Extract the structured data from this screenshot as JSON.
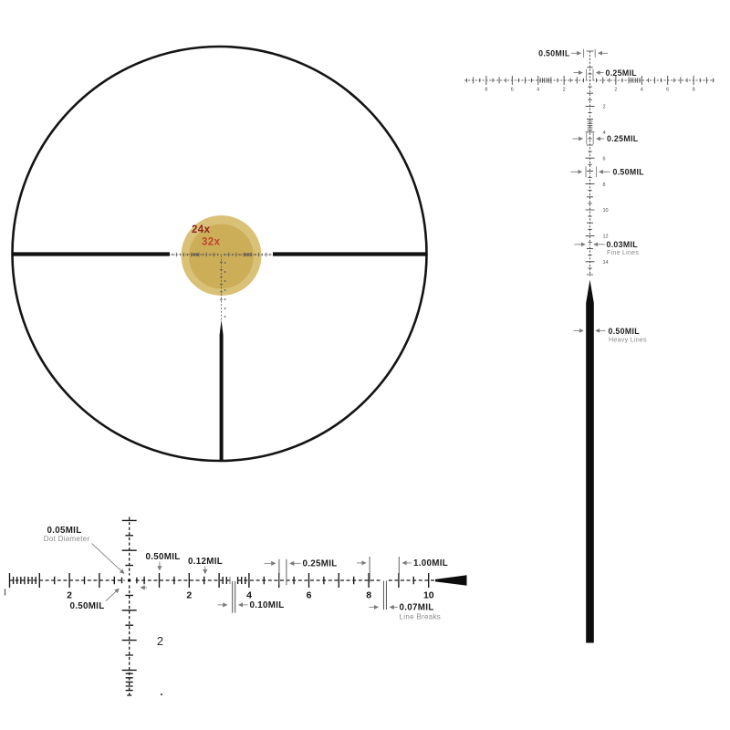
{
  "scope": {
    "mag_high": "24x",
    "mag_low": "32x"
  },
  "elevation": {
    "span_top": "0.50MIL",
    "span_junction": "0.25MIL",
    "span_mid": "0.25MIL",
    "span_lower": "0.50MIL",
    "fine_value": "0.03MIL",
    "fine_caption": "Fine Lines",
    "heavy_value": "0.50MIL",
    "heavy_caption": "Heavy Lines",
    "ruler_numbers": [
      "8",
      "6",
      "4",
      "2",
      "2",
      "4",
      "6",
      "8"
    ],
    "down_numbers": [
      "2",
      "4",
      "6",
      "8",
      "10",
      "12",
      "14"
    ]
  },
  "windage": {
    "dot_value": "0.05MIL",
    "dot_caption": "Dot Diameter",
    "half_left": "0.50MIL",
    "half_top": "0.50MIL",
    "tick_012": "0.12MIL",
    "span_quarter": "0.25MIL",
    "span_full": "1.00MIL",
    "gap_010": "0.10MIL",
    "break_value": "0.07MIL",
    "break_caption": "Line Breaks",
    "ruler_numbers": [
      "2",
      "2",
      "4",
      "6",
      "8",
      "10"
    ],
    "down_number": "2"
  },
  "colors": {
    "mag_high": "#8f2522",
    "mag_low": "#c2422a",
    "tan_outer": "#d9c278",
    "tan_inner": "#ccae59"
  }
}
